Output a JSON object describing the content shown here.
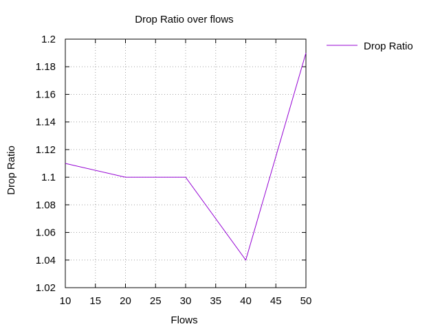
{
  "chart_data": {
    "type": "line",
    "title": "Drop Ratio over flows",
    "xlabel": "Flows",
    "ylabel": "Drop Ratio",
    "xlim": [
      10,
      50
    ],
    "ylim": [
      1.02,
      1.2
    ],
    "x_ticks": [
      10,
      15,
      20,
      25,
      30,
      35,
      40,
      45,
      50
    ],
    "y_ticks": [
      1.02,
      1.04,
      1.06,
      1.08,
      1.1,
      1.12,
      1.14,
      1.16,
      1.18,
      1.2
    ],
    "x_tick_labels": [
      "10",
      "15",
      "20",
      "25",
      "30",
      "35",
      "40",
      "45",
      "50"
    ],
    "y_tick_labels": [
      "1.02",
      "1.04",
      "1.06",
      "1.08",
      "1.1",
      "1.12",
      "1.14",
      "1.16",
      "1.18",
      "1.2"
    ],
    "grid": true,
    "legend_position": "top-right, outside plot",
    "series": [
      {
        "name": "Drop Ratio",
        "color": "#9400d3",
        "x": [
          10,
          20,
          30,
          40,
          50
        ],
        "y": [
          1.11,
          1.1,
          1.1,
          1.04,
          1.19
        ]
      }
    ]
  }
}
